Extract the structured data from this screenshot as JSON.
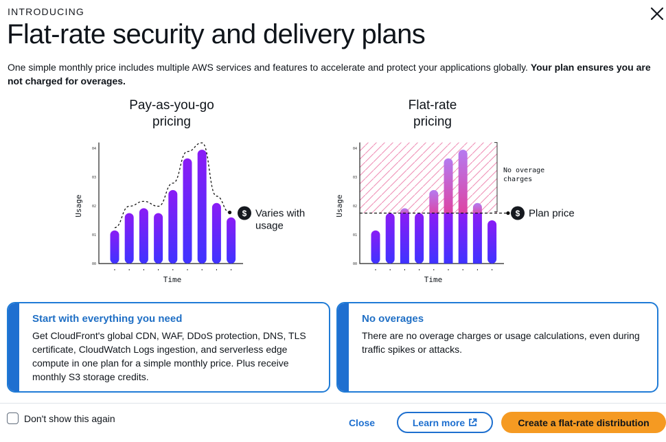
{
  "header": {
    "eyebrow": "INTRODUCING",
    "title": "Flat-rate security and delivery plans",
    "subtitle_plain": "One simple monthly price includes multiple AWS services and features to accelerate and protect your applications globally. ",
    "subtitle_bold": "Your plan ensures you are not charged for overages.",
    "close_icon": "close-icon"
  },
  "chart_data": [
    {
      "type": "bar",
      "title": "Pay-as-you-go pricing",
      "title_lines": [
        "Pay-as-you-go",
        "pricing"
      ],
      "xlabel": "Time",
      "ylabel": "Usage",
      "yticks": [
        "00",
        "01",
        "02",
        "03",
        "04"
      ],
      "values": [
        1.15,
        1.75,
        1.92,
        1.75,
        2.55,
        3.65,
        3.95,
        2.1,
        1.6
      ],
      "annotation": [
        "Varies with",
        "usage"
      ],
      "annotation_icon": "dollar-icon",
      "curve": "dashed-envelope",
      "colors": {
        "bar_top": "#8a1cf5",
        "bar_bottom": "#3f33ff"
      }
    },
    {
      "type": "bar",
      "title": "Flat-rate pricing",
      "title_lines": [
        "Flat-rate",
        "pricing"
      ],
      "xlabel": "Time",
      "ylabel": "Usage",
      "yticks": [
        "00",
        "01",
        "02",
        "03",
        "04"
      ],
      "values": [
        1.15,
        1.75,
        1.92,
        1.75,
        2.55,
        3.65,
        3.95,
        2.1,
        1.5
      ],
      "plan_price": 1.75,
      "annotation": [
        "Plan price"
      ],
      "annotation_icon": "dollar-icon",
      "region_note": [
        "No overage",
        "charges"
      ],
      "colors": {
        "bar_top": "#8a1cf5",
        "bar_bottom": "#3f33ff",
        "overage_top": "#b57af0",
        "overage_bottom": "#e0409e",
        "hatch": "#ef8fb6"
      }
    }
  ],
  "cards": [
    {
      "title": "Start with everything you need",
      "body": "Get CloudFront's global CDN, WAF, DDoS protection, DNS, TLS certificate, CloudWatch Logs ingestion, and serverless edge compute in one plan for a simple monthly price. Plus receive monthly S3 storage credits."
    },
    {
      "title": "No overages",
      "body": "There are no overage charges or usage calculations, even during traffic spikes or attacks."
    }
  ],
  "footer": {
    "dont_show_label": "Don't show this again",
    "close_label": "Close",
    "learn_more_label": "Learn more",
    "learn_more_icon": "external-link-icon",
    "create_label": "Create a flat-rate distribution"
  },
  "colors": {
    "accent": "#1f6fd0",
    "primary_button": "#f59a22"
  }
}
